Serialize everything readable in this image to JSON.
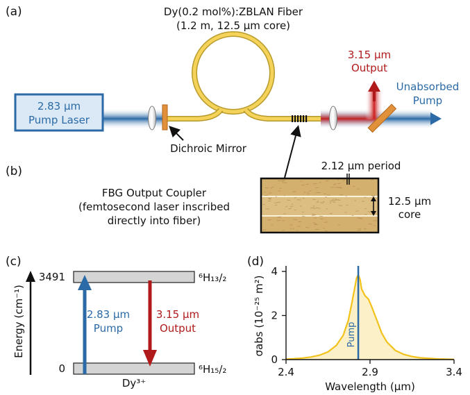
{
  "panel_labels": {
    "a": "(a)",
    "b": "(b)",
    "c": "(c)",
    "d": "(d)"
  },
  "fiber": {
    "title_line1": "Dy(0.2 mol%):ZBLAN Fiber",
    "title_line2": "(1.2 m, 12.5 μm core)"
  },
  "pump_laser": {
    "line1": "2.83 μm",
    "line2": "Pump Laser"
  },
  "output": {
    "line1": "3.15 μm",
    "line2": "Output"
  },
  "unabsorbed": {
    "line1": "Unabsorbed",
    "line2": "Pump"
  },
  "dichroic_label": "Dichroic Mirror",
  "fbg": {
    "line1": "FBG Output Coupler",
    "line2": "(femtosecond laser inscribed",
    "line3": "directly into fiber)",
    "period_label": "2.12 μm period",
    "core_line1": "12.5 μm",
    "core_line2": "core"
  },
  "energy_diagram": {
    "axis_label": "Energy (cm⁻¹)",
    "upper_value": "3491",
    "lower_value": "0",
    "upper_state": "⁶H₁₃/₂",
    "lower_state": "⁶H₁₅/₂",
    "pump_line1": "2.83 μm",
    "pump_line2": "Pump",
    "output_line1": "3.15 μm",
    "output_line2": "Output",
    "ion_label": "Dy³⁺"
  },
  "colors": {
    "pump_blue": "#2b6aa6",
    "output_red": "#b01a1a",
    "fiber_gold": "#f5d35a",
    "fiber_outline": "#b79a2a",
    "level_gray": "#d4d4d4"
  },
  "chart_data": {
    "type": "line",
    "ylabel": "σabs (10⁻²⁵ m²)",
    "xlabel": "Wavelength (μm)",
    "xlim": [
      2.4,
      3.4
    ],
    "ylim": [
      0,
      4
    ],
    "xticks": [
      "2.4",
      "2.9",
      "3.4"
    ],
    "yticks": [
      "0",
      "2",
      "4"
    ],
    "marker_label": "Pump",
    "marker_x": 2.83,
    "series": [
      {
        "x": [
          2.4,
          2.45,
          2.5,
          2.55,
          2.6,
          2.65,
          2.7,
          2.74,
          2.77,
          2.79,
          2.81,
          2.82,
          2.83,
          2.84,
          2.85,
          2.87,
          2.89,
          2.91,
          2.94,
          2.97,
          3.0,
          3.05,
          3.1,
          3.15,
          3.2,
          3.3,
          3.4
        ],
        "y": [
          0.02,
          0.04,
          0.07,
          0.12,
          0.2,
          0.35,
          0.65,
          1.1,
          1.75,
          2.5,
          3.3,
          3.7,
          3.85,
          3.65,
          3.2,
          2.9,
          2.75,
          2.4,
          1.8,
          1.2,
          0.8,
          0.42,
          0.24,
          0.14,
          0.08,
          0.03,
          0.01
        ]
      }
    ]
  }
}
